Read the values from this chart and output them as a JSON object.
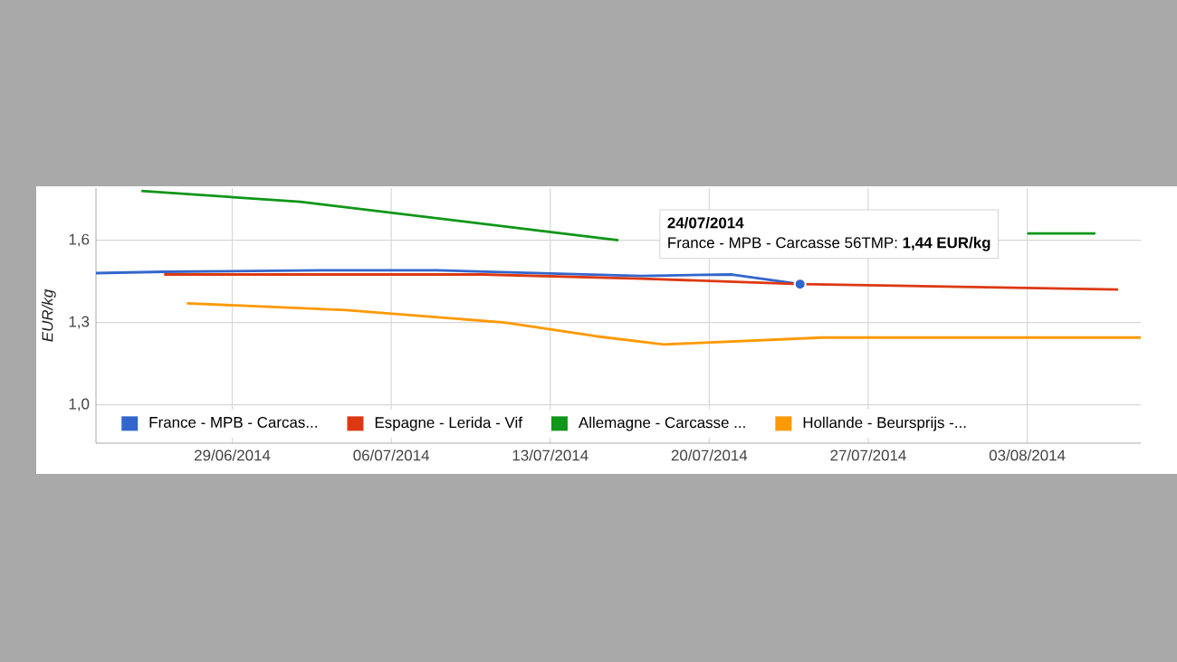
{
  "chart_data": {
    "type": "line",
    "ylabel": "EUR/kg",
    "xlim": [
      "2014-06-23",
      "2014-08-08"
    ],
    "ylim": [
      0.86,
      1.79
    ],
    "xticks": [
      {
        "value": "2014-06-29",
        "label": "29/06/2014"
      },
      {
        "value": "2014-07-06",
        "label": "06/07/2014"
      },
      {
        "value": "2014-07-13",
        "label": "13/07/2014"
      },
      {
        "value": "2014-07-20",
        "label": "20/07/2014"
      },
      {
        "value": "2014-07-27",
        "label": "27/07/2014"
      },
      {
        "value": "2014-08-03",
        "label": "03/08/2014"
      }
    ],
    "yticks": [
      {
        "value": 1.0,
        "label": "1,0"
      },
      {
        "value": 1.3,
        "label": "1,3"
      },
      {
        "value": 1.6,
        "label": "1,6"
      }
    ],
    "grid": true,
    "legend": "bottom",
    "series": [
      {
        "name": "France - MPB - Carcas...",
        "color": "#3366cc",
        "x": [
          "2014-06-23",
          "2014-06-26",
          "2014-07-03",
          "2014-07-08",
          "2014-07-17",
          "2014-07-21",
          "2014-07-24"
        ],
        "values": [
          1.48,
          1.485,
          1.49,
          1.49,
          1.47,
          1.475,
          1.44
        ]
      },
      {
        "name": "Espagne - Lerida - Vif",
        "color": "#dc3912",
        "x": [
          "2014-06-26",
          "2014-07-10",
          "2014-07-17",
          "2014-07-24",
          "2014-07-31",
          "2014-08-07"
        ],
        "values": [
          1.475,
          1.475,
          1.46,
          1.44,
          1.43,
          1.42
        ]
      },
      {
        "name": "Allemagne - Carcasse ...",
        "color": "#109618",
        "x": [
          "2014-06-25",
          "2014-07-02",
          "2014-07-16",
          "2014-07-23",
          "2014-08-03",
          "2014-08-06"
        ],
        "values": [
          1.78,
          1.74,
          1.6,
          null,
          1.625,
          1.625
        ]
      },
      {
        "name": "Hollande - Beursprijs -...",
        "color": "#ff9900",
        "x": [
          "2014-06-27",
          "2014-07-04",
          "2014-07-11",
          "2014-07-15",
          "2014-07-18",
          "2014-07-25",
          "2014-08-01",
          "2014-08-08"
        ],
        "values": [
          1.37,
          1.345,
          1.3,
          1.25,
          1.22,
          1.245,
          1.245,
          1.245
        ]
      }
    ],
    "annotations": [
      "24/07/2014",
      {
        "text": "France - MPB - Carcasse 56TMP: **1,44 EUR/kg**",
        "x": "2014-07-24",
        "y": 1.44
      }
    ]
  }
}
